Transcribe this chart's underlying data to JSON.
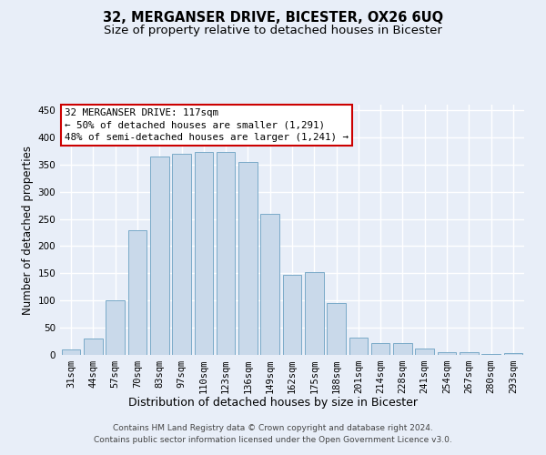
{
  "title": "32, MERGANSER DRIVE, BICESTER, OX26 6UQ",
  "subtitle": "Size of property relative to detached houses in Bicester",
  "xlabel": "Distribution of detached houses by size in Bicester",
  "ylabel": "Number of detached properties",
  "categories": [
    "31sqm",
    "44sqm",
    "57sqm",
    "70sqm",
    "83sqm",
    "97sqm",
    "110sqm",
    "123sqm",
    "136sqm",
    "149sqm",
    "162sqm",
    "175sqm",
    "188sqm",
    "201sqm",
    "214sqm",
    "228sqm",
    "241sqm",
    "254sqm",
    "267sqm",
    "280sqm",
    "293sqm"
  ],
  "values": [
    10,
    30,
    101,
    230,
    364,
    370,
    373,
    373,
    354,
    260,
    147,
    153,
    96,
    32,
    22,
    22,
    11,
    5,
    5,
    2,
    4
  ],
  "bar_color": "#c9d9ea",
  "bar_edge_color": "#7aaac8",
  "annotation_line1": "32 MERGANSER DRIVE: 117sqm",
  "annotation_line2": "← 50% of detached houses are smaller (1,291)",
  "annotation_line3": "48% of semi-detached houses are larger (1,241) →",
  "annotation_box_facecolor": "#ffffff",
  "annotation_box_edgecolor": "#cc0000",
  "footer_line1": "Contains HM Land Registry data © Crown copyright and database right 2024.",
  "footer_line2": "Contains public sector information licensed under the Open Government Licence v3.0.",
  "ylim": [
    0,
    460
  ],
  "yticks": [
    0,
    50,
    100,
    150,
    200,
    250,
    300,
    350,
    400,
    450
  ],
  "bg_color": "#e8eef8",
  "grid_color": "#ffffff",
  "title_fontsize": 10.5,
  "subtitle_fontsize": 9.5,
  "xlabel_fontsize": 9,
  "ylabel_fontsize": 8.5,
  "tick_fontsize": 7.5,
  "annotation_fontsize": 7.8,
  "footer_fontsize": 6.5
}
